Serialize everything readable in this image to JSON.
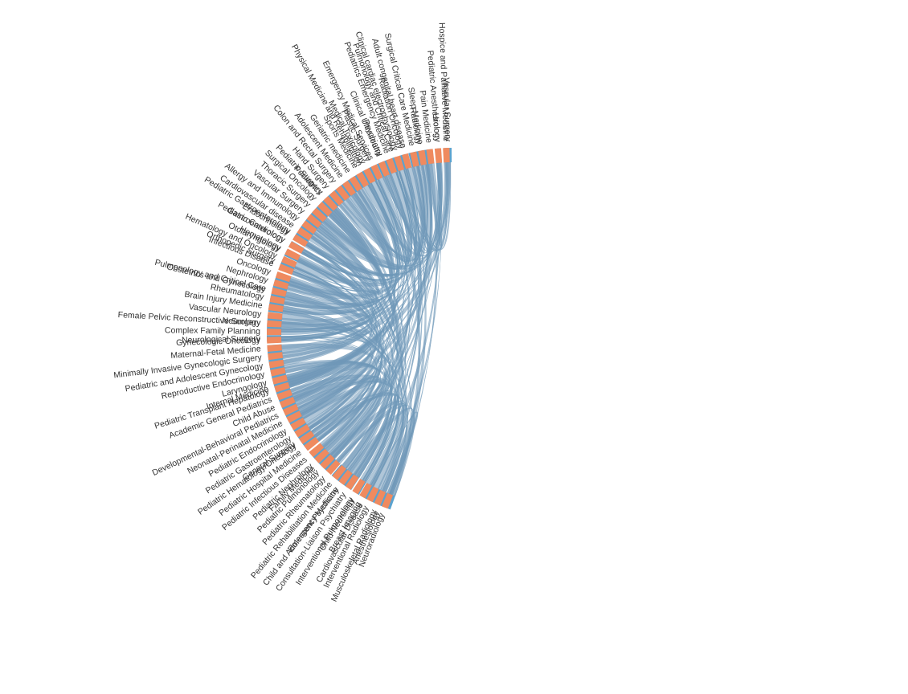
{
  "colors": {
    "blue_group": "#5ba3cf",
    "orange_group": "#ef8a5f",
    "ribbon": "#6f98b8"
  },
  "chart_data": {
    "type": "chord",
    "title": "",
    "hub": "Vascular Surgery",
    "blue_groups": [
      {
        "name": "Vascular Surgery",
        "weight": 1.0
      },
      {
        "name": "Urology",
        "weight": 0.8
      },
      {
        "name": "Radiology",
        "weight": 3.2
      },
      {
        "name": "Radiation Oncology",
        "weight": 0.8
      },
      {
        "name": "Pulmonology and Critical Care",
        "weight": 0.8
      },
      {
        "name": "Psychiatry",
        "weight": 1.6
      },
      {
        "name": "Plastic Surgery",
        "weight": 0.8
      },
      {
        "name": "Physical Medicine and Rehabilitation",
        "weight": 0.8
      },
      {
        "name": "Pediatrics",
        "weight": 11.0
      },
      {
        "name": "Pediatric Gastroenterology",
        "weight": 0.9
      },
      {
        "name": "Pediatric Cardiology",
        "weight": 0.9
      },
      {
        "name": "Otolaryngology",
        "weight": 0.9
      },
      {
        "name": "Orthopedic Surgery",
        "weight": 1.5
      },
      {
        "name": "Obstetrics and Gynecology",
        "weight": 5.5
      },
      {
        "name": "Neurology",
        "weight": 2.3
      },
      {
        "name": "Neurological Surgery",
        "weight": 0.9
      },
      {
        "name": "Internal Medicine",
        "weight": 11.5
      },
      {
        "name": "General Surgery",
        "weight": 3.5
      },
      {
        "name": "Family Medicine",
        "weight": 3.8
      },
      {
        "name": "Emergency Medicine",
        "weight": 3.3
      },
      {
        "name": "Child Neurology",
        "weight": 0.8
      },
      {
        "name": "Cardiovascular Disease",
        "weight": 0.8
      },
      {
        "name": "Anesthesiology",
        "weight": 3.0
      }
    ],
    "orange_groups": [
      {
        "name": "Neuroradiology"
      },
      {
        "name": "Musculoskeletal Radiology"
      },
      {
        "name": "Interventional Radiology"
      },
      {
        "name": "Breast Imaging"
      },
      {
        "name": "Interventional Pulmonology"
      },
      {
        "name": "Consultation-Liaison Psychiatry"
      },
      {
        "name": "Child and Adolescent Psychiatry"
      },
      {
        "name": "Pediatric Rehabilitation Medicine"
      },
      {
        "name": "Pediatric Rheumatology"
      },
      {
        "name": "Pediatric Pulmonology"
      },
      {
        "name": "Pediatric Nephrology"
      },
      {
        "name": "Pediatric Infectious Diseases"
      },
      {
        "name": "Pediatric Hospital Medicine"
      },
      {
        "name": "Pediatric Hematology/Oncology"
      },
      {
        "name": "Pediatric Gastroenterology"
      },
      {
        "name": "Pediatric Endocrinology"
      },
      {
        "name": "Neonatal-Perinatal Medicine"
      },
      {
        "name": "Developmental-Behavioral Pediatrics"
      },
      {
        "name": "Child Abuse"
      },
      {
        "name": "Academic General Pediatrics"
      },
      {
        "name": "Pediatric Transplant Hepatology"
      },
      {
        "name": "Laryngology"
      },
      {
        "name": "Reproductive Endocrinology"
      },
      {
        "name": "Pediatric and Adolescent Gynecology"
      },
      {
        "name": "Minimally Invasive Gynecologic Surgery"
      },
      {
        "name": "Maternal-Fetal Medicine"
      },
      {
        "name": "Gynecologic Oncology"
      },
      {
        "name": "Complex Family Planning"
      },
      {
        "name": "Female Pelvic Reconstructive Surgery"
      },
      {
        "name": "Vascular Neurology"
      },
      {
        "name": "Brain Injury Medicine"
      },
      {
        "name": "Rheumatology"
      },
      {
        "name": "Pulmonology and Critical Care"
      },
      {
        "name": "Nephrology"
      },
      {
        "name": "Oncology"
      },
      {
        "name": "Infectious Disease"
      },
      {
        "name": "Hematology and Oncology"
      },
      {
        "name": "Hematology"
      },
      {
        "name": "Gastroenterology"
      },
      {
        "name": "Endocrinology"
      },
      {
        "name": "Cardiovascular disease"
      },
      {
        "name": "Allergy and Immunology"
      },
      {
        "name": "Vascular Surgery"
      },
      {
        "name": "Thoracic Surgery"
      },
      {
        "name": "Surgical Oncology"
      },
      {
        "name": "Pediatric Surgery"
      },
      {
        "name": "Hand Surgery"
      },
      {
        "name": "Colon and Rectal Surgery"
      },
      {
        "name": "Adolescent Medicine"
      },
      {
        "name": "Geriatric medicine"
      },
      {
        "name": "Sports Medicine"
      },
      {
        "name": "Medical Toxicology"
      },
      {
        "name": "Emergency Medical Services"
      },
      {
        "name": "Clinical Ultrasound"
      },
      {
        "name": "Pediatrics Emergency Medicine"
      },
      {
        "name": "Clinical cardiac electrophysiology"
      },
      {
        "name": "Adult congenital heart disease"
      },
      {
        "name": "Surgical Critical Care Medicine"
      },
      {
        "name": "Sleep Medicine"
      },
      {
        "name": "Pain Medicine"
      },
      {
        "name": "Pediatric Anesthesiology"
      },
      {
        "name": "Hospice and Palliative Medicine"
      }
    ]
  }
}
